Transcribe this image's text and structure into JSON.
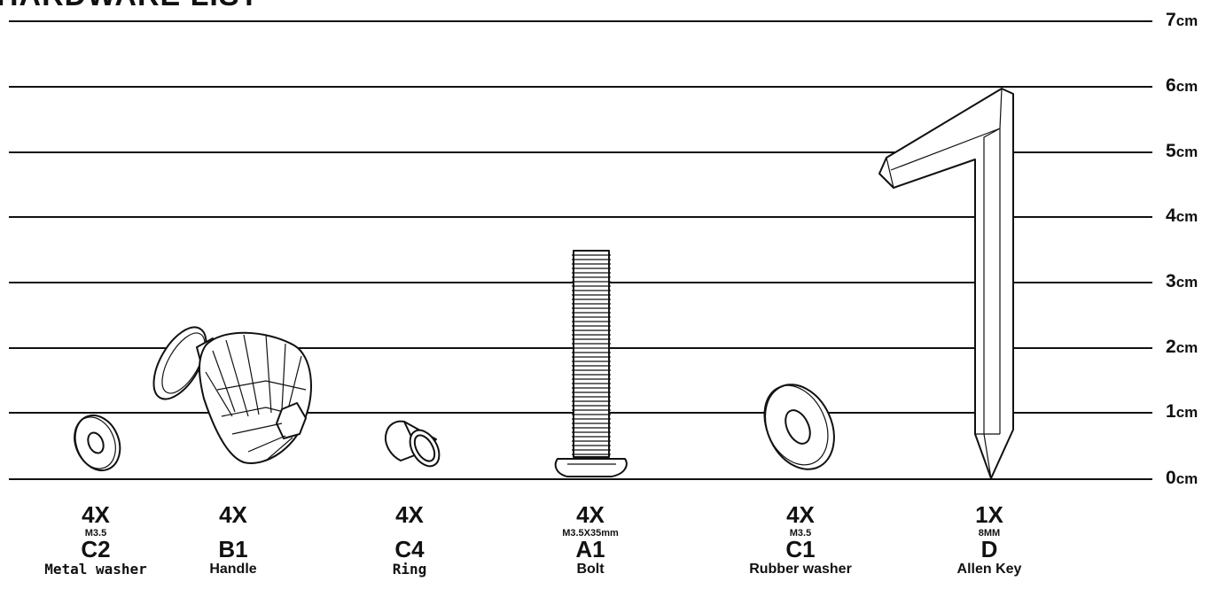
{
  "header": {
    "title": "HARDWARE LIST"
  },
  "scale": {
    "unit": "cm",
    "ticks": [
      {
        "value": "0",
        "unit": "cm"
      },
      {
        "value": "1",
        "unit": "cm"
      },
      {
        "value": "2",
        "unit": "cm"
      },
      {
        "value": "3",
        "unit": "cm"
      },
      {
        "value": "4",
        "unit": "cm"
      },
      {
        "value": "5",
        "unit": "cm"
      },
      {
        "value": "6",
        "unit": "cm"
      },
      {
        "value": "7",
        "unit": "cm"
      }
    ]
  },
  "items": [
    {
      "qty": "4X",
      "spec": "M3.5",
      "code": "C2",
      "name": "Metal washer",
      "icon": "metal-washer-icon"
    },
    {
      "qty": "4X",
      "spec": "",
      "code": "B1",
      "name": "Handle",
      "icon": "handle-knob-icon"
    },
    {
      "qty": "4X",
      "spec": "",
      "code": "C4",
      "name": "Ring",
      "icon": "ring-icon"
    },
    {
      "qty": "4X",
      "spec": "M3.5X35mm",
      "code": "A1",
      "name": "Bolt",
      "icon": "bolt-icon"
    },
    {
      "qty": "4X",
      "spec": "M3.5",
      "code": "C1",
      "name": "Rubber washer",
      "icon": "rubber-washer-icon"
    },
    {
      "qty": "1X",
      "spec": "8MM",
      "code": "D",
      "name": "Allen Key",
      "icon": "allen-key-icon"
    }
  ],
  "colors": {
    "ink": "#111111",
    "background": "#ffffff"
  }
}
